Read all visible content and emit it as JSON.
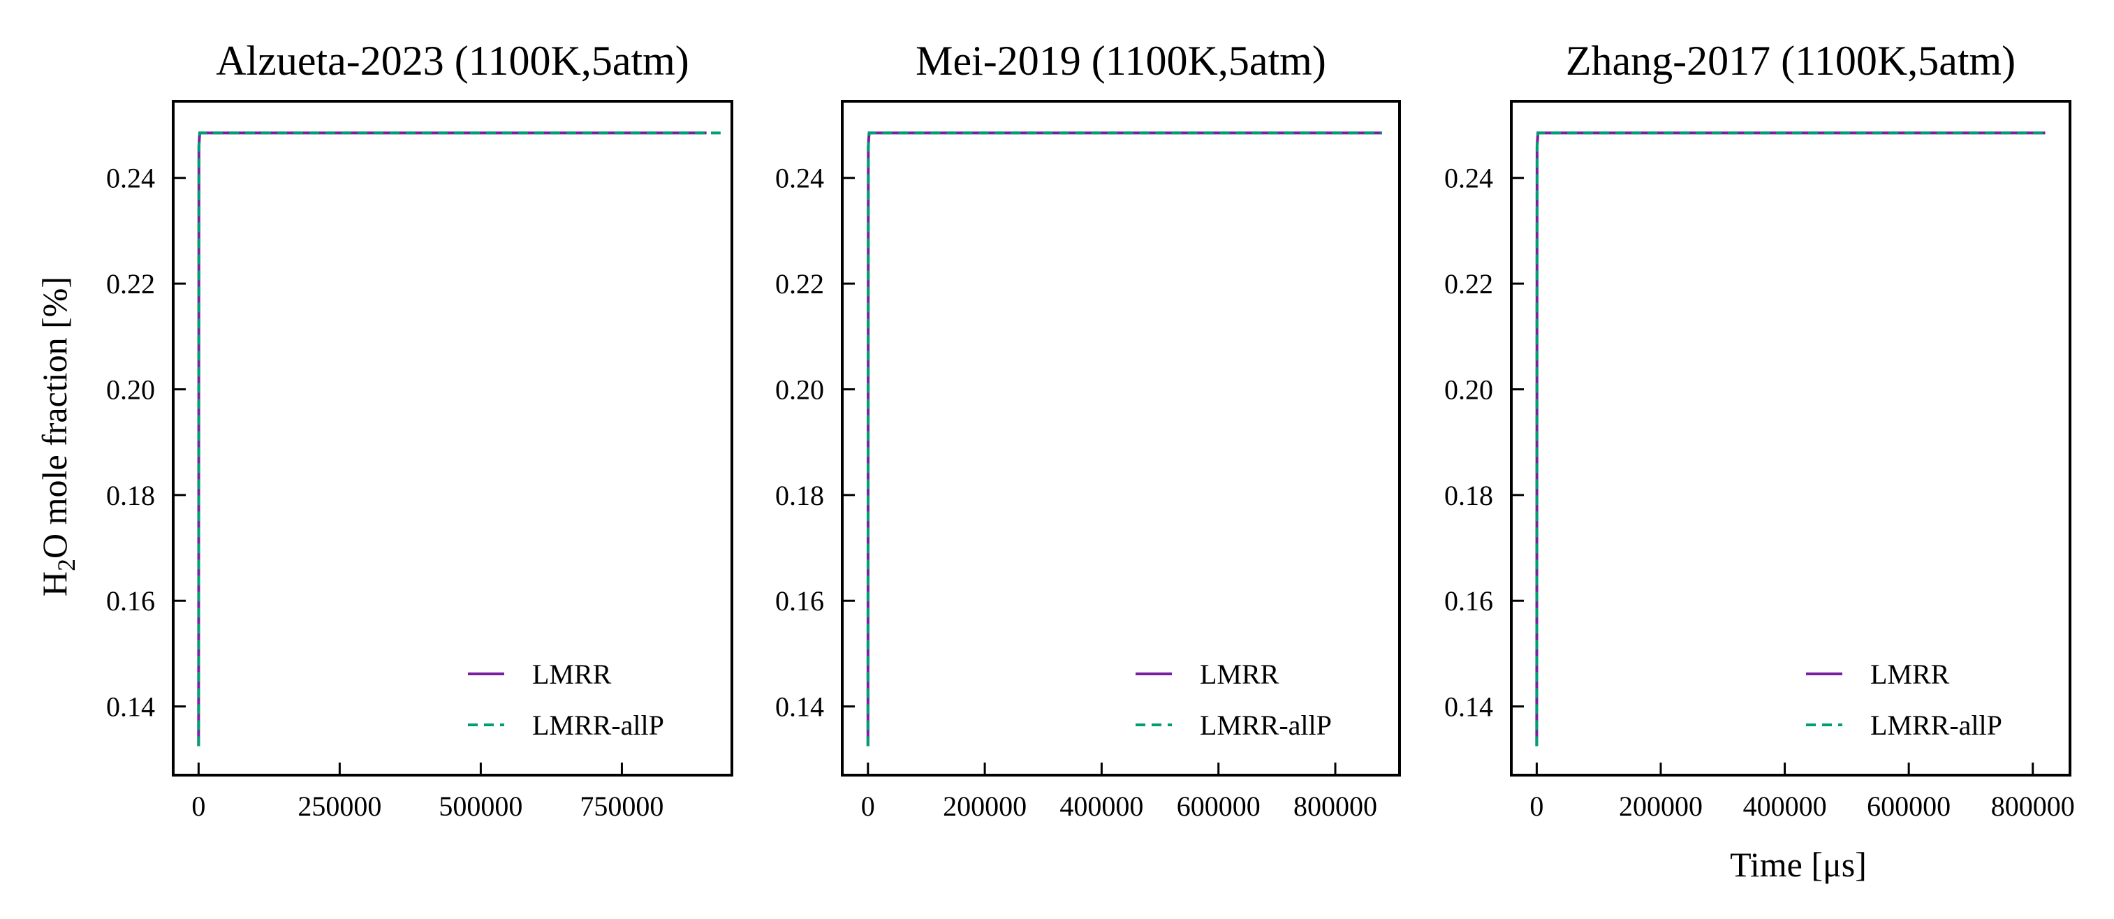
{
  "figure": {
    "ylabel_main": "H",
    "ylabel_sub": "2",
    "ylabel_rest": "O mole fraction [%]",
    "xlabel": "Time [μs]"
  },
  "colors": {
    "LMRR": "#7b1fa2",
    "LMRR-allP": "#009e73"
  },
  "chart_data": [
    {
      "type": "line",
      "title": "Alzueta-2023 (1100K,5atm)",
      "xlabel": "",
      "ylabel": "H2O mole fraction [%]",
      "xlim": [
        -45000,
        945000
      ],
      "ylim": [
        0.127,
        0.2545
      ],
      "xticks": [
        0,
        250000,
        500000,
        750000
      ],
      "yticks": [
        0.14,
        0.16,
        0.18,
        0.2,
        0.22,
        0.24
      ],
      "legend": "lower-right",
      "series": [
        {
          "name": "LMRR",
          "style": "solid",
          "x": [
            0,
            600,
            2000,
            900000
          ],
          "y": [
            0.1325,
            0.246,
            0.2485,
            0.2485
          ]
        },
        {
          "name": "LMRR-allP",
          "style": "dashed",
          "x": [
            0,
            600,
            2000,
            925000
          ],
          "y": [
            0.1325,
            0.246,
            0.2485,
            0.2485
          ]
        }
      ]
    },
    {
      "type": "line",
      "title": "Mei-2019 (1100K,5atm)",
      "xlabel": "",
      "ylabel": "",
      "xlim": [
        -44000,
        910000
      ],
      "ylim": [
        0.127,
        0.2545
      ],
      "xticks": [
        0,
        200000,
        400000,
        600000,
        800000
      ],
      "yticks": [
        0.14,
        0.16,
        0.18,
        0.2,
        0.22,
        0.24
      ],
      "legend": "lower-right",
      "series": [
        {
          "name": "LMRR",
          "style": "solid",
          "x": [
            0,
            600,
            2000,
            880000
          ],
          "y": [
            0.1325,
            0.246,
            0.2485,
            0.2485
          ]
        },
        {
          "name": "LMRR-allP",
          "style": "dashed",
          "x": [
            0,
            600,
            2000,
            880000
          ],
          "y": [
            0.1325,
            0.246,
            0.2485,
            0.2485
          ]
        }
      ]
    },
    {
      "type": "line",
      "title": "Zhang-2017 (1100K,5atm)",
      "xlabel": "Time [μs]",
      "ylabel": "",
      "xlim": [
        -41000,
        860000
      ],
      "ylim": [
        0.127,
        0.2545
      ],
      "xticks": [
        0,
        200000,
        400000,
        600000,
        800000
      ],
      "yticks": [
        0.14,
        0.16,
        0.18,
        0.2,
        0.22,
        0.24
      ],
      "legend": "lower-right",
      "series": [
        {
          "name": "LMRR",
          "style": "solid",
          "x": [
            0,
            600,
            2000,
            820000
          ],
          "y": [
            0.1325,
            0.246,
            0.2485,
            0.2485
          ]
        },
        {
          "name": "LMRR-allP",
          "style": "dashed",
          "x": [
            0,
            600,
            2000,
            820000
          ],
          "y": [
            0.1325,
            0.246,
            0.2485,
            0.2485
          ]
        }
      ]
    }
  ]
}
